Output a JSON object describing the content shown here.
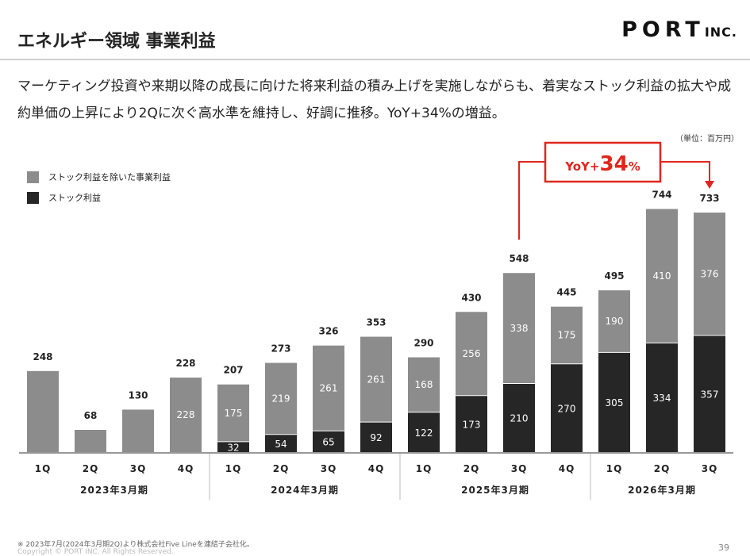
{
  "header": {
    "title": "エネルギー領域 事業利益",
    "logo_main": "PORT",
    "logo_sub": "INC."
  },
  "description": "マーケティング投資や来期以降の成長に向けた将来利益の積み上げを実施しながらも、着実なストック利益の拡大や成約単価の上昇により2Qに次ぐ高水準を維持し、好調に推移。YoY+34%の増益。",
  "unit": "（単位：百万円）",
  "legend": {
    "other": {
      "label": "ストック利益を除いた事業利益",
      "color": "#8c8c8c"
    },
    "stock": {
      "label": "ストック利益",
      "color": "#262626"
    }
  },
  "callout": {
    "prefix": "YoY+",
    "number": "34",
    "suffix": "%",
    "color": "#e0261c"
  },
  "chart_data": {
    "type": "bar",
    "stacked": true,
    "categories": [
      "1Q",
      "2Q",
      "3Q",
      "4Q",
      "1Q",
      "2Q",
      "3Q",
      "4Q",
      "1Q",
      "2Q",
      "3Q",
      "4Q",
      "1Q",
      "2Q",
      "3Q"
    ],
    "groups": [
      {
        "label": "2023年3月期",
        "start": 0,
        "count": 4
      },
      {
        "label": "2024年3月期",
        "start": 4,
        "count": 4
      },
      {
        "label": "2025年3月期",
        "start": 8,
        "count": 4
      },
      {
        "label": "2026年3月期",
        "start": 12,
        "count": 3
      }
    ],
    "series": [
      {
        "name": "ストック利益",
        "values": [
          0,
          0,
          0,
          0,
          32,
          54,
          65,
          92,
          122,
          173,
          210,
          270,
          305,
          334,
          357
        ]
      },
      {
        "name": "ストック利益を除いた事業利益",
        "values": [
          248,
          68,
          130,
          228,
          175,
          219,
          261,
          261,
          168,
          256,
          338,
          175,
          190,
          410,
          376
        ]
      }
    ],
    "totals": [
      248,
      68,
      130,
      228,
      207,
      273,
      326,
      353,
      290,
      430,
      548,
      445,
      495,
      744,
      733
    ],
    "segment_labels_other": [
      null,
      null,
      null,
      "228",
      "175",
      "219",
      "261",
      "261",
      "168",
      "256",
      "338",
      "175",
      "190",
      "410",
      "376"
    ],
    "segment_labels_stock": [
      null,
      null,
      null,
      null,
      "32",
      "54",
      "65",
      "92",
      "122",
      "173",
      "210",
      "270",
      "305",
      "334",
      "357"
    ],
    "ylim": [
      0,
      800
    ]
  },
  "footer": {
    "note": "※ 2023年7月(2024年3月期2Q)より株式会社Five Lineを連結子会社化。",
    "copyright": "Copyright © PORT INC. All Rights Reserved.",
    "page": "39"
  }
}
